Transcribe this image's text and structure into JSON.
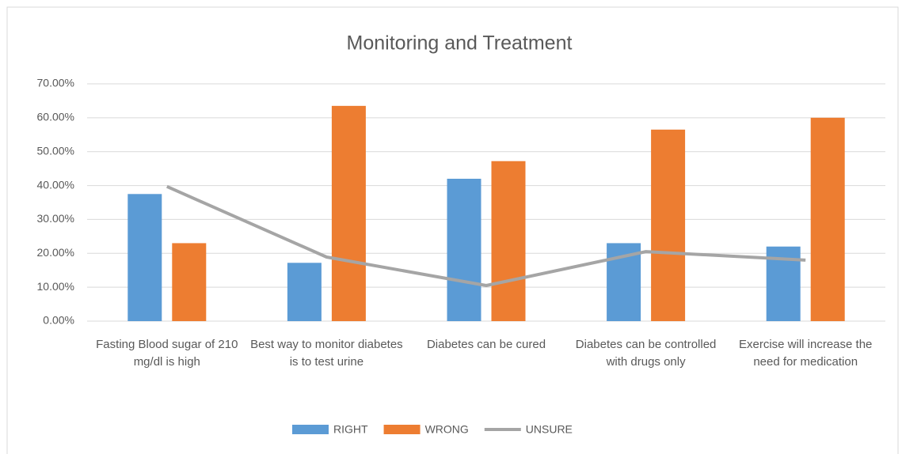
{
  "chart_data": {
    "type": "bar",
    "title": "Monitoring and Treatment",
    "categories": [
      "Fasting Blood sugar of 210 mg/dl is high",
      "Best way to monitor diabetes is to test urine",
      "Diabetes can be cured",
      "Diabetes can be controlled with drugs only",
      "Exercise will increase the need for medication"
    ],
    "series": [
      {
        "name": "RIGHT",
        "type": "bar",
        "color": "#5b9bd5",
        "values": [
          37.5,
          17.2,
          42,
          23,
          22
        ]
      },
      {
        "name": "WRONG",
        "type": "bar",
        "color": "#ed7d31",
        "values": [
          23,
          63.5,
          47.2,
          56.5,
          60
        ]
      },
      {
        "name": "UNSURE",
        "type": "line",
        "color": "#a5a5a5",
        "values": [
          39.7,
          18.9,
          10.5,
          20.5,
          18
        ]
      }
    ],
    "ylim": [
      0,
      70
    ],
    "yticks": [
      {
        "value": 0,
        "label": "0.00%"
      },
      {
        "value": 10,
        "label": "10.00%"
      },
      {
        "value": 20,
        "label": "20.00%"
      },
      {
        "value": 30,
        "label": "30.00%"
      },
      {
        "value": 40,
        "label": "40.00%"
      },
      {
        "value": 50,
        "label": "50.00%"
      },
      {
        "value": 60,
        "label": "60.00%"
      },
      {
        "value": 70,
        "label": "70.00%"
      }
    ],
    "grid": true,
    "legend": "bottom"
  }
}
